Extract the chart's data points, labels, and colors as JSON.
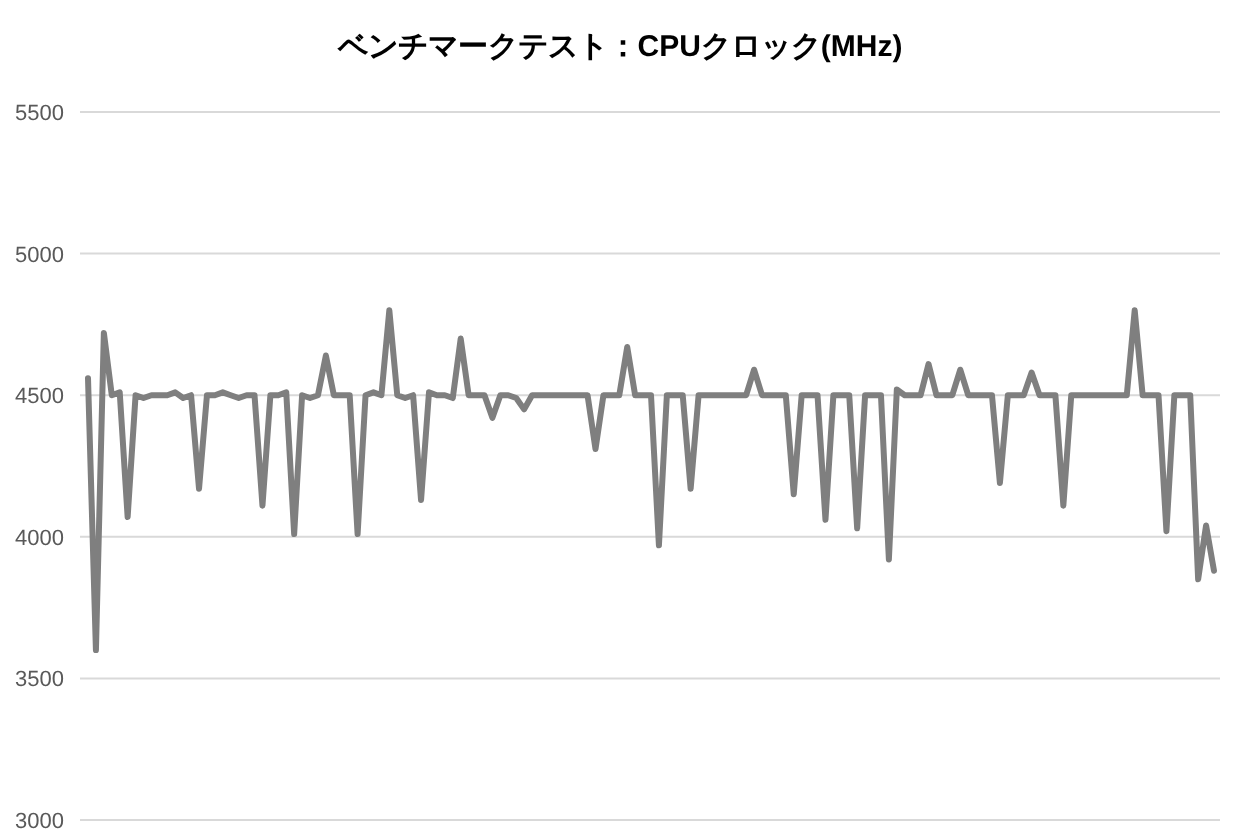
{
  "chart_data": {
    "type": "line",
    "title": "ベンチマークテスト：CPUクロック(MHz)",
    "categories": [
      null,
      null,
      null,
      null,
      null,
      null,
      null,
      null,
      null,
      null,
      null,
      null,
      null,
      null,
      null,
      null,
      null,
      null,
      null,
      null,
      null,
      null,
      null,
      null,
      null,
      null,
      null,
      null,
      null,
      null,
      null,
      null,
      null,
      null,
      null,
      null,
      null,
      null,
      null,
      null,
      null,
      null,
      null,
      null,
      null,
      null,
      null,
      null,
      null,
      null,
      null,
      null,
      null,
      null,
      null,
      null,
      null,
      null,
      null,
      null,
      null,
      null,
      null,
      null,
      null,
      null,
      null,
      null,
      null,
      null,
      null,
      null,
      null,
      null,
      null,
      null,
      null,
      null,
      null,
      null,
      null,
      null,
      null,
      null,
      null,
      null,
      null,
      null,
      null,
      null,
      null,
      null,
      null,
      null,
      null,
      null,
      null,
      null,
      null,
      null,
      null,
      null,
      null,
      null,
      null,
      null,
      null,
      null,
      null,
      null,
      null,
      null,
      null,
      null,
      null,
      null,
      null,
      null,
      null,
      null,
      null,
      null,
      null,
      null,
      null,
      null,
      null,
      null,
      null,
      null,
      null,
      null,
      null,
      null,
      null,
      null,
      null,
      null,
      null,
      null,
      null,
      null,
      null
    ],
    "series": [
      {
        "color": "#7f7f7f",
        "values": [
          4560,
          3600,
          4720,
          4500,
          4510,
          4070,
          4500,
          4490,
          4500,
          4500,
          4500,
          4510,
          4490,
          4500,
          4170,
          4500,
          4500,
          4510,
          4500,
          4490,
          4500,
          4500,
          4110,
          4500,
          4500,
          4510,
          4010,
          4500,
          4490,
          4500,
          4640,
          4500,
          4500,
          4500,
          4010,
          4500,
          4510,
          4500,
          4800,
          4500,
          4490,
          4500,
          4130,
          4510,
          4500,
          4500,
          4490,
          4700,
          4500,
          4500,
          4500,
          4420,
          4500,
          4500,
          4490,
          4450,
          4500,
          4500,
          4500,
          4500,
          4500,
          4500,
          4500,
          4500,
          4310,
          4500,
          4500,
          4500,
          4670,
          4500,
          4500,
          4500,
          3970,
          4500,
          4500,
          4500,
          4170,
          4500,
          4500,
          4500,
          4500,
          4500,
          4500,
          4500,
          4590,
          4500,
          4500,
          4500,
          4500,
          4150,
          4500,
          4500,
          4500,
          4060,
          4500,
          4500,
          4500,
          4030,
          4500,
          4500,
          4500,
          3920,
          4520,
          4500,
          4500,
          4500,
          4610,
          4500,
          4500,
          4500,
          4590,
          4500,
          4500,
          4500,
          4500,
          4190,
          4500,
          4500,
          4500,
          4580,
          4500,
          4500,
          4500,
          4110,
          4500,
          4500,
          4500,
          4500,
          4500,
          4500,
          4500,
          4500,
          4800,
          4500,
          4500,
          4500,
          4020,
          4500,
          4500,
          4500,
          3850,
          4040,
          3880
        ]
      }
    ],
    "ylim": [
      3000,
      5500
    ],
    "yticks": [
      3000,
      3500,
      4000,
      4500,
      5000,
      5500
    ],
    "grid": "y",
    "tick_labels": "y"
  }
}
